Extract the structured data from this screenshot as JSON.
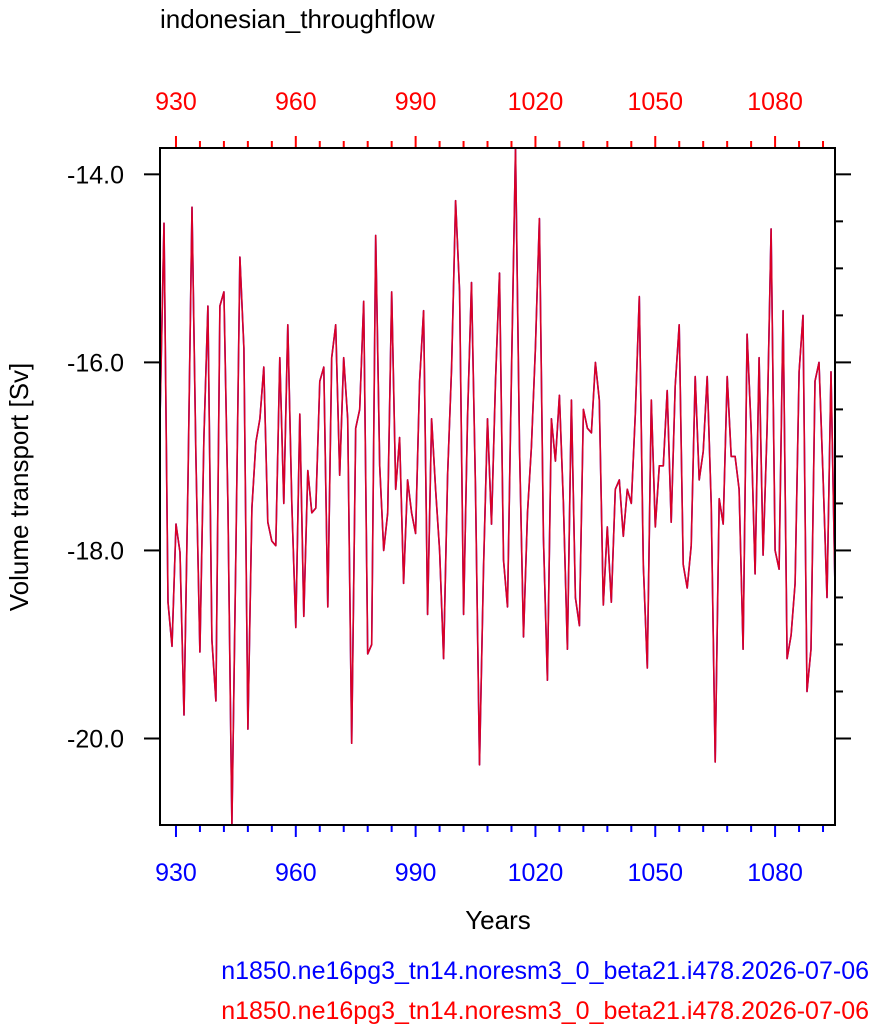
{
  "chart_data": {
    "type": "line",
    "title": "indonesian_throughflow",
    "xlabel": "Years",
    "ylabel": "Volume transport [Sv]",
    "xlim": [
      926,
      1095
    ],
    "ylim": [
      -20.92,
      -13.72
    ],
    "xticks": [
      930,
      960,
      990,
      1020,
      1050,
      1080
    ],
    "xtick_labels": [
      "930",
      "960",
      "990",
      "1020",
      "1050",
      "1080"
    ],
    "yticks": [
      -14.0,
      -16.0,
      -18.0,
      -20.0
    ],
    "ytick_labels": [
      "-14.0",
      "-16.0",
      "-18.0",
      "-20.0"
    ],
    "top_axis_color": "#ff0000",
    "bottom_axis_color": "#0000ff",
    "series": [
      {
        "name": "n1850.ne16pg3_tn14.noresm3_0_beta21.i478.2026-07-06",
        "color": "#0000ff",
        "x": [
          926,
          927,
          928,
          929,
          930,
          931,
          932,
          933,
          934,
          935,
          936,
          937,
          938,
          939,
          940,
          941,
          942,
          943,
          944,
          945,
          946,
          947,
          948,
          949,
          950,
          951,
          952,
          953,
          954,
          955,
          956,
          957,
          958,
          959,
          960,
          961,
          962,
          963,
          964,
          965,
          966,
          967,
          968,
          969,
          970,
          971,
          972,
          973,
          974,
          975,
          976,
          977,
          978,
          979,
          980,
          981,
          982,
          983,
          984,
          985,
          986,
          987,
          988,
          989,
          990,
          991,
          992,
          993,
          994,
          995,
          996,
          997,
          998,
          999,
          1000,
          1001,
          1002,
          1003,
          1004,
          1005,
          1006,
          1007,
          1008,
          1009,
          1010,
          1011,
          1012,
          1013,
          1014,
          1015,
          1016,
          1017,
          1018,
          1019,
          1020,
          1021,
          1022,
          1023,
          1024,
          1025,
          1026,
          1027,
          1028,
          1029,
          1030,
          1031,
          1032,
          1033,
          1034,
          1035,
          1036,
          1037,
          1038,
          1039,
          1040,
          1041,
          1042,
          1043,
          1044,
          1045,
          1046,
          1047,
          1048,
          1049,
          1050,
          1051,
          1052,
          1053,
          1054,
          1055,
          1056,
          1057,
          1058,
          1059,
          1060,
          1061,
          1062,
          1063,
          1064,
          1065,
          1066,
          1067,
          1068,
          1069,
          1070,
          1071,
          1072,
          1073,
          1074,
          1075,
          1076,
          1077,
          1078,
          1079,
          1080,
          1081,
          1082,
          1083,
          1084,
          1085,
          1086,
          1087,
          1088,
          1089,
          1090,
          1091,
          1092,
          1093,
          1094,
          1095
        ],
        "y": [
          -16.6,
          -14.52,
          -18.55,
          -19.02,
          -17.72,
          -18.02,
          -19.75,
          -17.25,
          -14.35,
          -17.0,
          -19.08,
          -16.8,
          -15.4,
          -18.95,
          -19.6,
          -15.4,
          -15.25,
          -17.5,
          -20.92,
          -18.0,
          -14.88,
          -15.85,
          -19.9,
          -17.55,
          -16.85,
          -16.6,
          -16.05,
          -17.7,
          -17.9,
          -17.95,
          -15.95,
          -17.5,
          -15.6,
          -17.5,
          -18.82,
          -16.55,
          -18.7,
          -17.15,
          -17.6,
          -17.55,
          -16.2,
          -16.05,
          -18.6,
          -15.95,
          -15.6,
          -17.2,
          -15.95,
          -16.6,
          -20.05,
          -16.7,
          -16.5,
          -15.35,
          -19.1,
          -19.0,
          -14.65,
          -17.1,
          -18.0,
          -17.6,
          -15.25,
          -17.35,
          -16.8,
          -18.35,
          -17.25,
          -17.6,
          -17.82,
          -16.2,
          -15.45,
          -18.68,
          -16.6,
          -17.35,
          -18.0,
          -19.15,
          -17.2,
          -16.05,
          -14.28,
          -15.25,
          -18.68,
          -16.6,
          -15.15,
          -17.35,
          -20.28,
          -18.2,
          -16.6,
          -17.72,
          -16.2,
          -15.05,
          -18.1,
          -18.6,
          -16.1,
          -13.72,
          -16.9,
          -18.92,
          -17.6,
          -16.9,
          -15.85,
          -14.47,
          -17.85,
          -19.38,
          -16.6,
          -17.05,
          -16.35,
          -17.5,
          -19.05,
          -16.4,
          -18.5,
          -18.8,
          -16.5,
          -16.7,
          -16.75,
          -16.0,
          -16.4,
          -18.58,
          -17.75,
          -18.55,
          -17.35,
          -17.25,
          -17.85,
          -17.35,
          -17.5,
          -16.55,
          -15.3,
          -18.15,
          -19.25,
          -16.4,
          -17.75,
          -17.1,
          -17.1,
          -16.3,
          -17.7,
          -16.25,
          -15.6,
          -18.15,
          -18.4,
          -17.95,
          -16.15,
          -17.25,
          -16.95,
          -16.15,
          -17.5,
          -20.25,
          -17.45,
          -17.72,
          -16.15,
          -17.0,
          -17.0,
          -17.35,
          -19.05,
          -15.7,
          -16.7,
          -18.25,
          -15.95,
          -18.05,
          -16.7,
          -14.58,
          -18.0,
          -18.2,
          -15.45,
          -19.15,
          -18.9,
          -18.35,
          -16.1,
          -15.5,
          -19.5,
          -19.05,
          -16.2,
          -16.0,
          -17.2,
          -18.5,
          -16.1,
          -18.4
        ]
      },
      {
        "name": "n1850.ne16pg3_tn14.noresm3_0_beta21.i478.2026-07-06",
        "color": "#ff0000",
        "x": [
          926,
          927,
          928,
          929,
          930,
          931,
          932,
          933,
          934,
          935,
          936,
          937,
          938,
          939,
          940,
          941,
          942,
          943,
          944,
          945,
          946,
          947,
          948,
          949,
          950,
          951,
          952,
          953,
          954,
          955,
          956,
          957,
          958,
          959,
          960,
          961,
          962,
          963,
          964,
          965,
          966,
          967,
          968,
          969,
          970,
          971,
          972,
          973,
          974,
          975,
          976,
          977,
          978,
          979,
          980,
          981,
          982,
          983,
          984,
          985,
          986,
          987,
          988,
          989,
          990,
          991,
          992,
          993,
          994,
          995,
          996,
          997,
          998,
          999,
          1000,
          1001,
          1002,
          1003,
          1004,
          1005,
          1006,
          1007,
          1008,
          1009,
          1010,
          1011,
          1012,
          1013,
          1014,
          1015,
          1016,
          1017,
          1018,
          1019,
          1020,
          1021,
          1022,
          1023,
          1024,
          1025,
          1026,
          1027,
          1028,
          1029,
          1030,
          1031,
          1032,
          1033,
          1034,
          1035,
          1036,
          1037,
          1038,
          1039,
          1040,
          1041,
          1042,
          1043,
          1044,
          1045,
          1046,
          1047,
          1048,
          1049,
          1050,
          1051,
          1052,
          1053,
          1054,
          1055,
          1056,
          1057,
          1058,
          1059,
          1060,
          1061,
          1062,
          1063,
          1064,
          1065,
          1066,
          1067,
          1068,
          1069,
          1070,
          1071,
          1072,
          1073,
          1074,
          1075,
          1076,
          1077,
          1078,
          1079,
          1080,
          1081,
          1082,
          1083,
          1084,
          1085,
          1086,
          1087,
          1088,
          1089,
          1090,
          1091,
          1092,
          1093,
          1094,
          1095
        ],
        "y": [
          -16.6,
          -14.52,
          -18.55,
          -19.02,
          -17.72,
          -18.02,
          -19.75,
          -17.25,
          -14.35,
          -17.0,
          -19.08,
          -16.8,
          -15.4,
          -18.95,
          -19.6,
          -15.4,
          -15.25,
          -17.5,
          -20.92,
          -18.0,
          -14.88,
          -15.85,
          -19.9,
          -17.55,
          -16.85,
          -16.6,
          -16.05,
          -17.7,
          -17.9,
          -17.95,
          -15.95,
          -17.5,
          -15.6,
          -17.5,
          -18.82,
          -16.55,
          -18.7,
          -17.15,
          -17.6,
          -17.55,
          -16.2,
          -16.05,
          -18.6,
          -15.95,
          -15.6,
          -17.2,
          -15.95,
          -16.6,
          -20.05,
          -16.7,
          -16.5,
          -15.35,
          -19.1,
          -19.0,
          -14.65,
          -17.1,
          -18.0,
          -17.6,
          -15.25,
          -17.35,
          -16.8,
          -18.35,
          -17.25,
          -17.6,
          -17.82,
          -16.2,
          -15.45,
          -18.68,
          -16.6,
          -17.35,
          -18.0,
          -19.15,
          -17.2,
          -16.05,
          -14.28,
          -15.25,
          -18.68,
          -16.6,
          -15.15,
          -17.35,
          -20.28,
          -18.2,
          -16.6,
          -17.72,
          -16.2,
          -15.05,
          -18.1,
          -18.6,
          -16.1,
          -13.72,
          -16.9,
          -18.92,
          -17.6,
          -16.9,
          -15.85,
          -14.47,
          -17.85,
          -19.38,
          -16.6,
          -17.05,
          -16.35,
          -17.5,
          -19.05,
          -16.4,
          -18.5,
          -18.8,
          -16.5,
          -16.7,
          -16.75,
          -16.0,
          -16.4,
          -18.58,
          -17.75,
          -18.55,
          -17.35,
          -17.25,
          -17.85,
          -17.35,
          -17.5,
          -16.55,
          -15.3,
          -18.15,
          -19.25,
          -16.4,
          -17.75,
          -17.1,
          -17.1,
          -16.3,
          -17.7,
          -16.25,
          -15.6,
          -18.15,
          -18.4,
          -17.95,
          -16.15,
          -17.25,
          -16.95,
          -16.15,
          -17.5,
          -20.25,
          -17.45,
          -17.72,
          -16.15,
          -17.0,
          -17.0,
          -17.35,
          -19.05,
          -15.7,
          -16.7,
          -18.25,
          -15.95,
          -18.05,
          -16.7,
          -14.58,
          -18.0,
          -18.2,
          -15.45,
          -19.15,
          -18.9,
          -18.35,
          -16.1,
          -15.5,
          -19.5,
          -19.05,
          -16.2,
          -16.0,
          -17.2,
          -18.5,
          -16.1,
          -18.4
        ]
      }
    ]
  }
}
